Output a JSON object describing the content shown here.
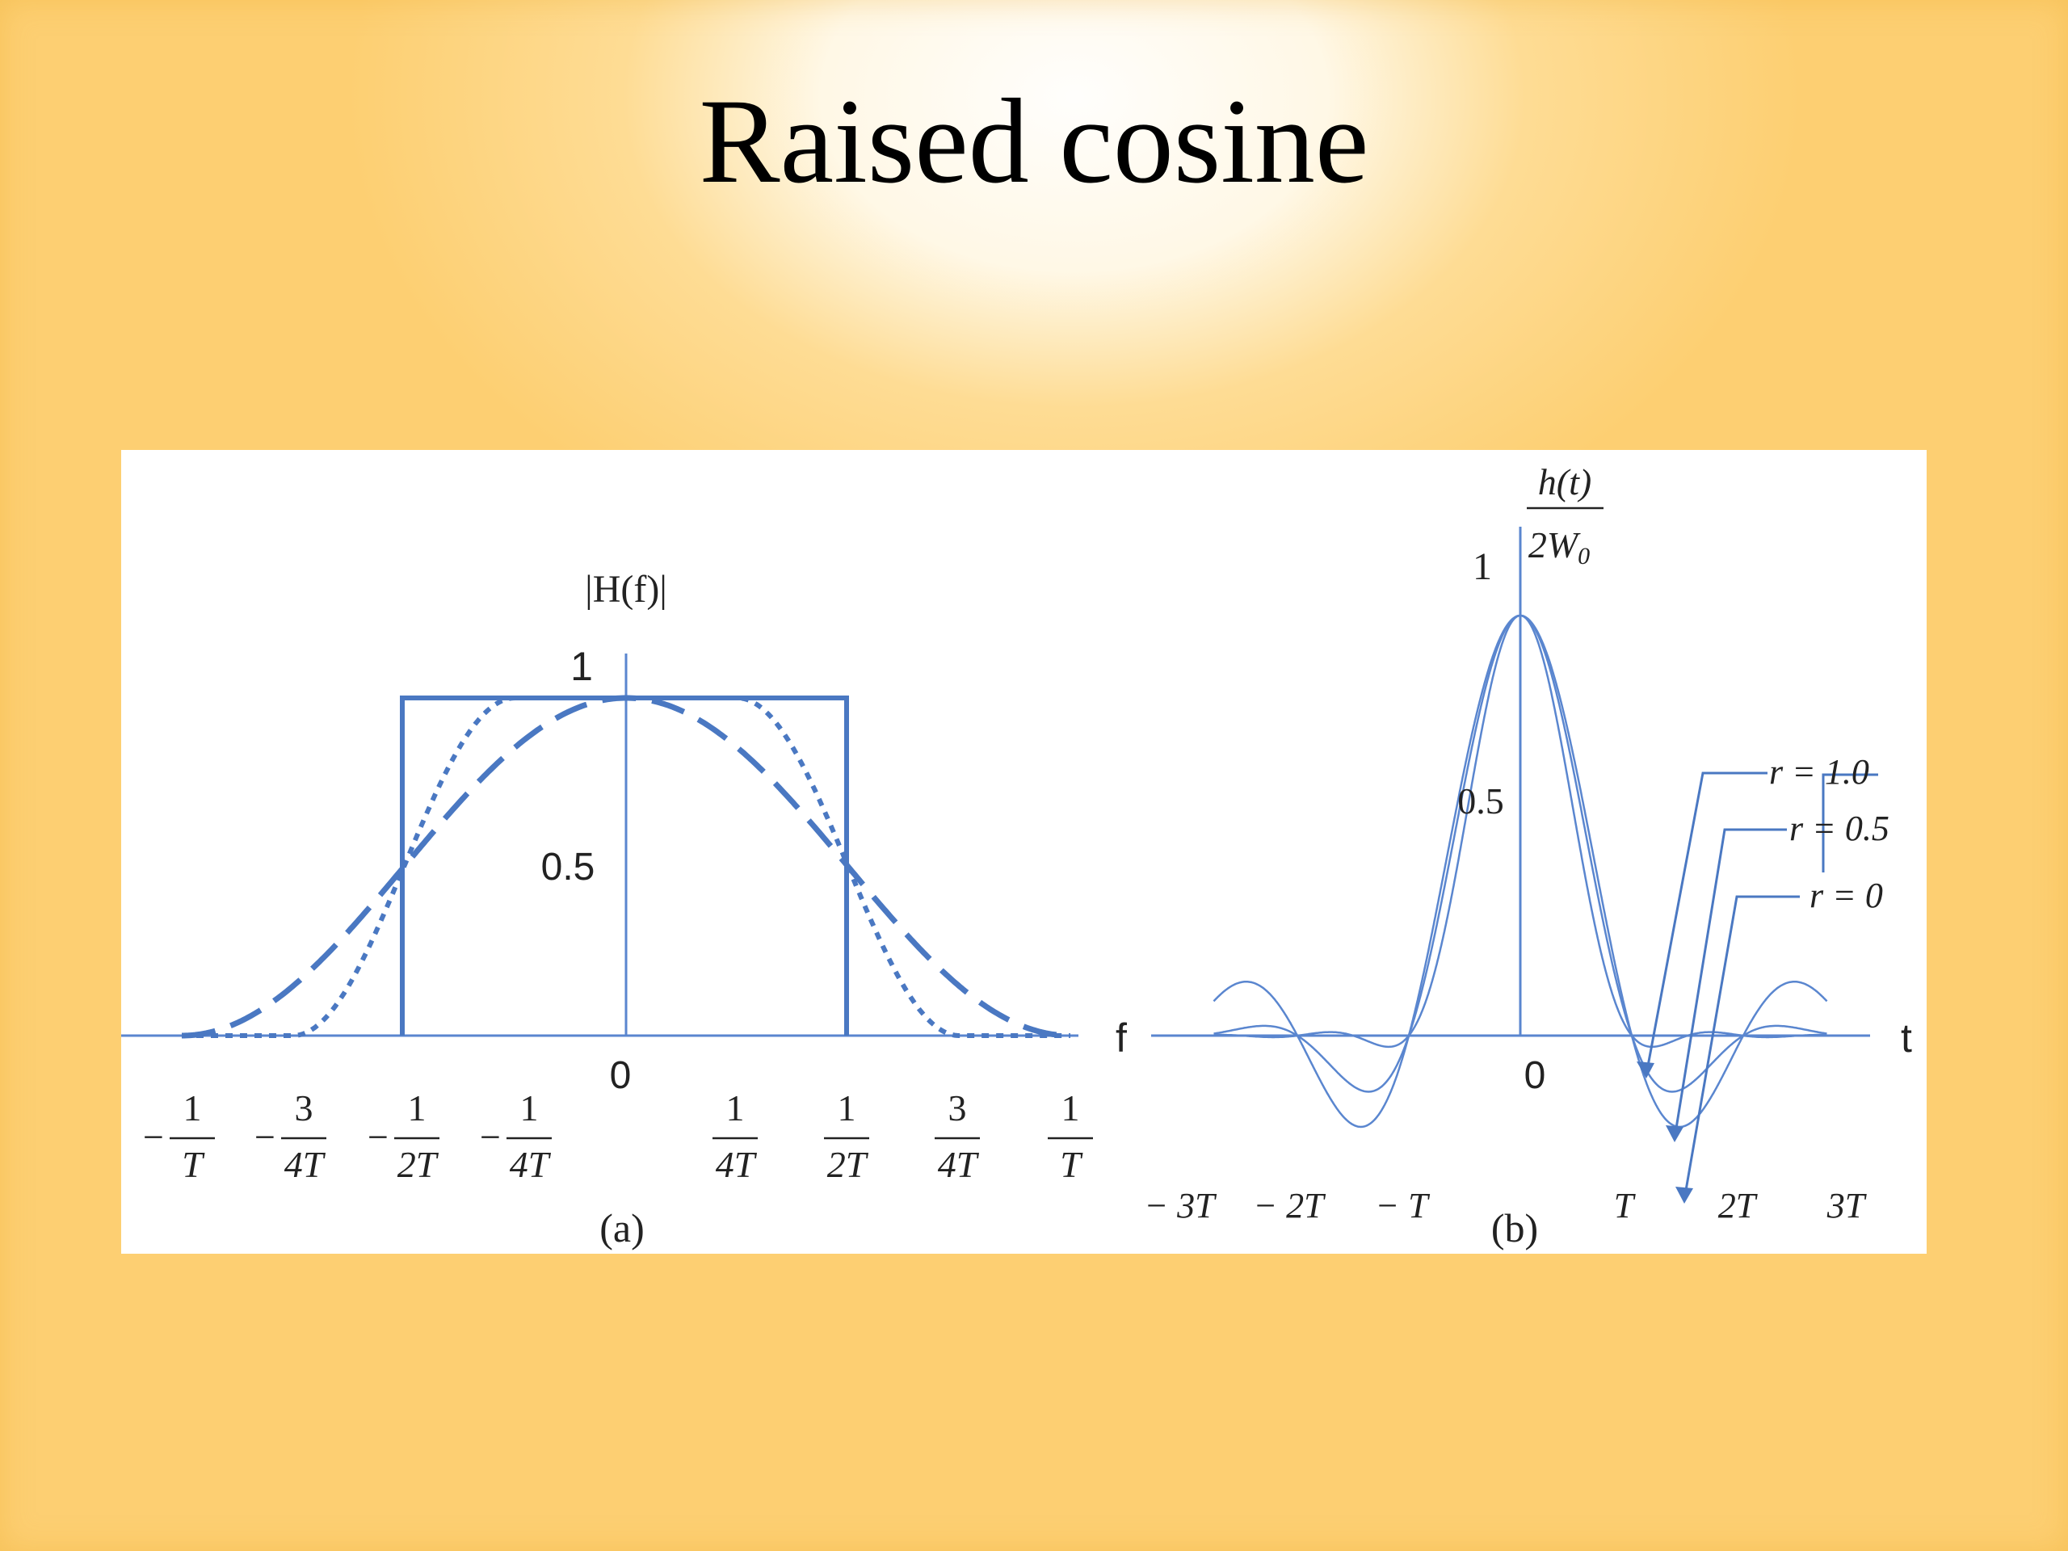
{
  "title": "Raised cosine",
  "colors": {
    "background": "#fdcf72",
    "panel": "#ffffff",
    "curve": "#4a78c2",
    "curve_thin": "#5a86cf"
  },
  "panel_a": {
    "y_axis_label": "|H(f)|",
    "y_tick_1": "1",
    "y_tick_half": "0.5",
    "x_axis_label": "f",
    "origin": "0",
    "caption": "(a)",
    "neg_sign": "−",
    "ticks": [
      {
        "sign": "−",
        "num": "1",
        "den": "T"
      },
      {
        "sign": "−",
        "num": "3",
        "den": "4T"
      },
      {
        "sign": "−",
        "num": "1",
        "den": "2T"
      },
      {
        "sign": "−",
        "num": "1",
        "den": "4T"
      },
      {
        "sign": "",
        "num": "1",
        "den": "4T"
      },
      {
        "sign": "",
        "num": "1",
        "den": "2T"
      },
      {
        "sign": "",
        "num": "3",
        "den": "4T"
      },
      {
        "sign": "",
        "num": "1",
        "den": "T"
      }
    ]
  },
  "panel_b": {
    "y_axis_num": "h(t)",
    "y_axis_den": "2W",
    "y_axis_den_sub": "0",
    "y_tick_1": "1",
    "y_tick_half": "0.5",
    "x_axis_label": "t",
    "origin": "0",
    "caption": "(b)",
    "ticks": [
      "− 3T",
      "− 2T",
      "− T",
      "T",
      "2T",
      "3T"
    ],
    "legend": [
      "r = 1.0",
      "r = 0.5",
      "r = 0"
    ]
  }
}
